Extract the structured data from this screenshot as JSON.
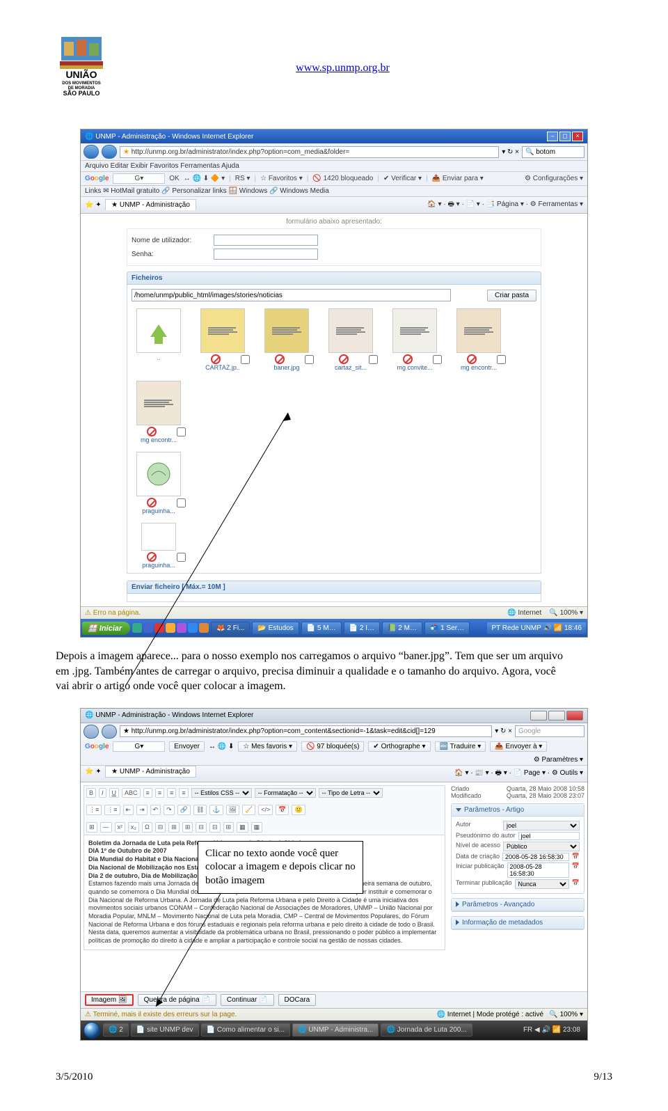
{
  "header": {
    "url": "www.sp.unmp.org.br"
  },
  "logo": {
    "org_line1": "UNIÃO",
    "org_line2": "DOS MOVIMENTOS",
    "org_line3": "DE MORADIA",
    "org_line4": "SÃO PAULO"
  },
  "screenshot1": {
    "title": "UNMP - Administração - Windows Internet Explorer",
    "address": "http://unmp.org.br/administrator/index.php?option=com_media&folder=",
    "search_prefix": "botom",
    "menubar": "Arquivo   Editar   Exibir   Favoritos   Ferramentas   Ajuda",
    "google_toolbar": {
      "ok": "OK",
      "favoritos": "Favoritos ▾",
      "bloqueado": "1420 bloqueado",
      "verificar": "Verificar ▾",
      "enviar": "Enviar para ▾",
      "config": "Configurações ▾",
      "rs": "RS ▾"
    },
    "links_bar": "Links  ✉ HotMail gratuito  🔗 Personalizar links  🪟 Windows  🔗 Windows Media",
    "tab_label": "UNMP - Administração",
    "right_toolbar": "🏠 ▾  ·  🖶 ▾  ·  📄 ▾  ·  📑 Página ▾  ·  ⚙ Ferramentas ▾",
    "form": {
      "info": "formulário abaixo apresentado:",
      "user_label": "Nome de utilizador:",
      "pass_label": "Senha:"
    },
    "ficheiros": {
      "header": "Ficheiros",
      "path": "/home/unmp/public_html/images/stories/noticias",
      "btn_criar": "Criar pasta",
      "files": [
        {
          "name": "..",
          "type": "up"
        },
        {
          "name": "CARTAZ.jp..",
          "type": "img",
          "bg": "#f3e08c"
        },
        {
          "name": "baner.jpg",
          "type": "img",
          "bg": "#e6d27a"
        },
        {
          "name": "cartaz_sit...",
          "type": "img",
          "bg": "#efe6de"
        },
        {
          "name": "mg convite...",
          "type": "img",
          "bg": "#f0efe8"
        },
        {
          "name": "mg encontr...",
          "type": "img",
          "bg": "#efe0ca"
        },
        {
          "name": "mg encontr...",
          "type": "img",
          "bg": "#f0e6d6"
        }
      ],
      "row2_file": "praguinha..."
    },
    "enviar_header": "Enviar ficheiro [ Máx.= 10M ]",
    "status_left": "Erro na página.",
    "status_right_zone": "Internet",
    "status_zoom": "100%",
    "start": "Iniciar",
    "task_items": [
      "🦊 2 Fi...",
      "📂 Estudos",
      "📄 5 M…",
      "📄 2 I…",
      "📗 2 M…",
      "📬 1 Ser…"
    ],
    "tray": "PT   Rede UNMP  🔊 📶  18:46"
  },
  "bodytext": "Depois a imagem aparece... para o nosso exemplo nos carregamos o arquivo “baner.jpg”. Tem que ser um arquivo em .jpg. Também antes de carregar o arquivo, precisa diminuir a qualidade e o tamanho do arquivo. Agora, você vai abrir o artigo onde você quer colocar a imagem.",
  "screenshot2": {
    "title": "UNMP - Administração - Windows Internet Explorer",
    "address": "http://unmp.org.br/administrator/index.php?option=com_content&sectionid=-1&task=edit&cid[]=129",
    "search_placeholder": "Google",
    "google_toolbar": {
      "envoyer": "Envoyer",
      "mesfav": "Mes favoris ▾",
      "bloque": "97 bloquée(s)",
      "ortho": "Orthographe ▾",
      "trad": "Traduire ▾",
      "envoyera": "Envoyer à ▾",
      "param": "Paramètres ▾"
    },
    "tab_label": "UNMP - Administração",
    "right_toolbar": "🏠 ▾ · 📰 ▾ · 🖶 ▾ · 📄 Page ▾ · ⚙ Outils ▾",
    "editor_dropdowns": {
      "css": "-- Estilos CSS --",
      "format": "-- Formatação --",
      "font": "-- Tipo de Letra --"
    },
    "article": {
      "l1": "Boletim da Jornada de Luta pela Reforma Urbana e pelo Direito à Cidade",
      "l2": "DIA 1º de Outubro de 2007",
      "l3": "Dia Mundial do Habitat e Dia Nacional da Reforma Urbana",
      "l4": "Dia Nacional de Mobilização nos Estados",
      "l5": "Dia 2 de outubro, Dia de Mobilização em Brasília",
      "l6": "Estamos fazendo mais uma Jornada de Luta pela Reforma Urbana e pelo Direito à Cidade, na primeira semana de outubro, quando se comemora o Dia Mundial do Habitat. Dia que o Fórum Nacional de Reforma Urbana quer instituir e comemorar o Dia Nacional de Reforma Urbana. A Jornada de Luta pela Reforma Urbana e pelo Direito à Cidade é uma iniciativa dos movimentos sociais urbanos CONAM – Confederação Nacional de Associações de Moradores, UNMP – União Nacional por Moradia Popular, MNLM – Movimento Nacional de Luta pela Moradia, CMP – Central de Movimentos Populares, do Fórum Nacional de Reforma Urbana e dos fóruns estaduais e regionais pela reforma urbana e pelo direito à cidade de todo o Brasil.",
      "l7": "Nesta data, queremos aumentar a visibilidade da problemática urbana no Brasil, pressionando o poder público a implementar políticas de promoção do direito à cidade e ampliar a participação e controle social na gestão de nossas cidades."
    },
    "sidebar": {
      "criado_label": "Criado",
      "criado_val": "Quarta, 28 Maio 2008 10:58",
      "mod_label": "Modificado",
      "mod_val": "Quarta, 28 Maio 2008 23:07",
      "panel1": "Parâmetros - Artigo",
      "autor_label": "Autor",
      "autor_val": "joel",
      "pseudo_label": "Pseudónimo do autor",
      "pseudo_val": "joel",
      "nivel_label": "Nível de acesso",
      "nivel_val": "Público",
      "datacri_label": "Data de criação",
      "datacri_val": "2008-05-28 16:58:30",
      "inipub_label": "Iniciar publicação",
      "inipub_val": "2008-05-28 16:58:30",
      "termpub_label": "Terminar publicação",
      "termpub_val": "Nunca",
      "panel2": "Parâmetros - Avançado",
      "panel3": "Informação de metadados"
    },
    "bottom_buttons": {
      "imagem": "Imagem",
      "quebra": "Quebra de página",
      "continuar": "Continuar",
      "docara": "DOCara"
    },
    "status_left": "Terminé, mais il existe des erreurs sur la page.",
    "status_right": "Internet | Mode protégé : activé",
    "zoom": "100%",
    "task_items": [
      "🌐 2",
      "📄 site UNMP dev",
      "📄 Como alimentar o si...",
      "🌐 UNMP - Administra...",
      "🌐 Jornada de Luta 200..."
    ],
    "tray": "FR  ◀ 🔊 📶 23:08"
  },
  "callout": "Clicar no texto aonde você quer colocar a imagem e depois clicar no botão imagem",
  "footer": {
    "date": "3/5/2010",
    "page": "9/13"
  }
}
